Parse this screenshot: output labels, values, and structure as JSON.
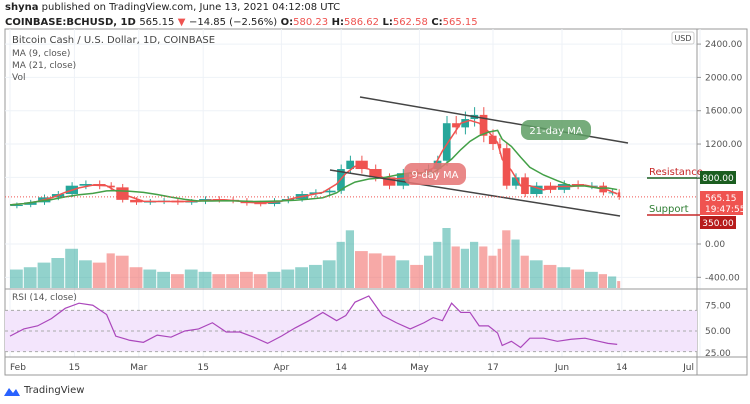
{
  "header": {
    "publisher": "shyna",
    "published_text": "published on TradingView.com, June 13, 2021 04:12:08 UTC",
    "symbol": "COINBASE:BCHUSD, 1D",
    "last": "565.15",
    "change": "−14.85 (−2.56%)",
    "o_label": "O:",
    "o": "580.23",
    "h_label": "H:",
    "h": "586.62",
    "l_label": "L:",
    "l": "562.58",
    "c_label": "C:",
    "c": "565.15"
  },
  "legend": {
    "title": "Bitcoin Cash / U.S. Dollar, 1D, COINBASE",
    "ma9": "MA (9, close)",
    "ma21": "MA (21, close)",
    "vol": "Vol",
    "rsi": "RSI (14, close)"
  },
  "price_axis": {
    "currency": "USD",
    "ticks": [
      "2400.00",
      "2000.00",
      "1600.00",
      "1200.00",
      "800.00",
      "0.00",
      "-400.00"
    ],
    "tick_values": [
      2400,
      2000,
      1600,
      1200,
      800,
      0,
      -400
    ],
    "resistance_badge": "800.00",
    "support_badge": "350.00",
    "last_badge": "565.15",
    "countdown": "19:47:55"
  },
  "rsi_axis": {
    "ticks": [
      "75.00",
      "50.00",
      "25.00"
    ],
    "tick_values": [
      75,
      50,
      25
    ],
    "band": [
      30,
      70
    ]
  },
  "time_axis": {
    "labels": [
      "Feb",
      "15",
      "Mar",
      "15",
      "Apr",
      "14",
      "May",
      "17",
      "Jun",
      "14",
      "Jul"
    ],
    "dates": [
      "2021-02-01",
      "2021-02-15",
      "2021-03-01",
      "2021-03-15",
      "2021-04-01",
      "2021-04-14",
      "2021-05-01",
      "2021-05-17",
      "2021-06-01",
      "2021-06-14",
      "2021-07-01"
    ]
  },
  "annotations": {
    "resistance": "Resistance",
    "support": "Support",
    "ma21_label": "21-day MA",
    "ma9_label": "9-day MA"
  },
  "colors": {
    "up": "#26a69a",
    "down": "#ef5350",
    "ma9": "#ef5350",
    "ma21": "#43a047",
    "rsi": "#ab47bc",
    "rsi_band": "#f3e5fc",
    "resistance_badge": "#1b5e20",
    "support_badge": "#b71c1c"
  },
  "chart_data": {
    "type": "candlestick",
    "ylim": [
      -400,
      2400
    ],
    "dates": [
      "2021-02-01",
      "2021-02-04",
      "2021-02-07",
      "2021-02-10",
      "2021-02-13",
      "2021-02-16",
      "2021-02-19",
      "2021-02-22",
      "2021-02-24",
      "2021-02-27",
      "2021-03-02",
      "2021-03-05",
      "2021-03-08",
      "2021-03-11",
      "2021-03-14",
      "2021-03-17",
      "2021-03-20",
      "2021-03-23",
      "2021-03-26",
      "2021-03-29",
      "2021-04-01",
      "2021-04-04",
      "2021-04-07",
      "2021-04-10",
      "2021-04-13",
      "2021-04-15",
      "2021-04-17",
      "2021-04-20",
      "2021-04-23",
      "2021-04-26",
      "2021-04-29",
      "2021-05-02",
      "2021-05-04",
      "2021-05-06",
      "2021-05-08",
      "2021-05-10",
      "2021-05-12",
      "2021-05-14",
      "2021-05-16",
      "2021-05-18",
      "2021-05-19",
      "2021-05-21",
      "2021-05-23",
      "2021-05-25",
      "2021-05-28",
      "2021-05-31",
      "2021-06-03",
      "2021-06-06",
      "2021-06-09",
      "2021-06-11",
      "2021-06-13"
    ],
    "close": [
      470,
      500,
      560,
      600,
      700,
      720,
      700,
      680,
      530,
      500,
      510,
      520,
      500,
      510,
      540,
      530,
      520,
      490,
      480,
      520,
      540,
      600,
      620,
      640,
      900,
      1000,
      900,
      800,
      700,
      850,
      830,
      900,
      1000,
      1450,
      1400,
      1500,
      1550,
      1300,
      1200,
      1150,
      700,
      800,
      600,
      700,
      650,
      720,
      700,
      700,
      620,
      620,
      565
    ],
    "volume": [
      80,
      90,
      110,
      130,
      170,
      120,
      110,
      150,
      140,
      90,
      80,
      70,
      60,
      80,
      70,
      60,
      60,
      70,
      60,
      70,
      80,
      90,
      100,
      120,
      200,
      250,
      160,
      150,
      140,
      120,
      100,
      140,
      200,
      260,
      180,
      170,
      200,
      180,
      140,
      170,
      250,
      210,
      140,
      120,
      100,
      90,
      80,
      70,
      60,
      50,
      30
    ],
    "rsi": [
      45,
      52,
      55,
      62,
      72,
      77,
      75,
      66,
      45,
      41,
      39,
      46,
      44,
      50,
      52,
      58,
      49,
      49,
      44,
      38,
      45,
      53,
      60,
      68,
      60,
      65,
      78,
      84,
      65,
      58,
      52,
      58,
      63,
      60,
      77,
      68,
      68,
      55,
      55,
      48,
      36,
      40,
      34,
      43,
      43,
      40,
      42,
      43,
      40,
      38,
      37
    ]
  }
}
